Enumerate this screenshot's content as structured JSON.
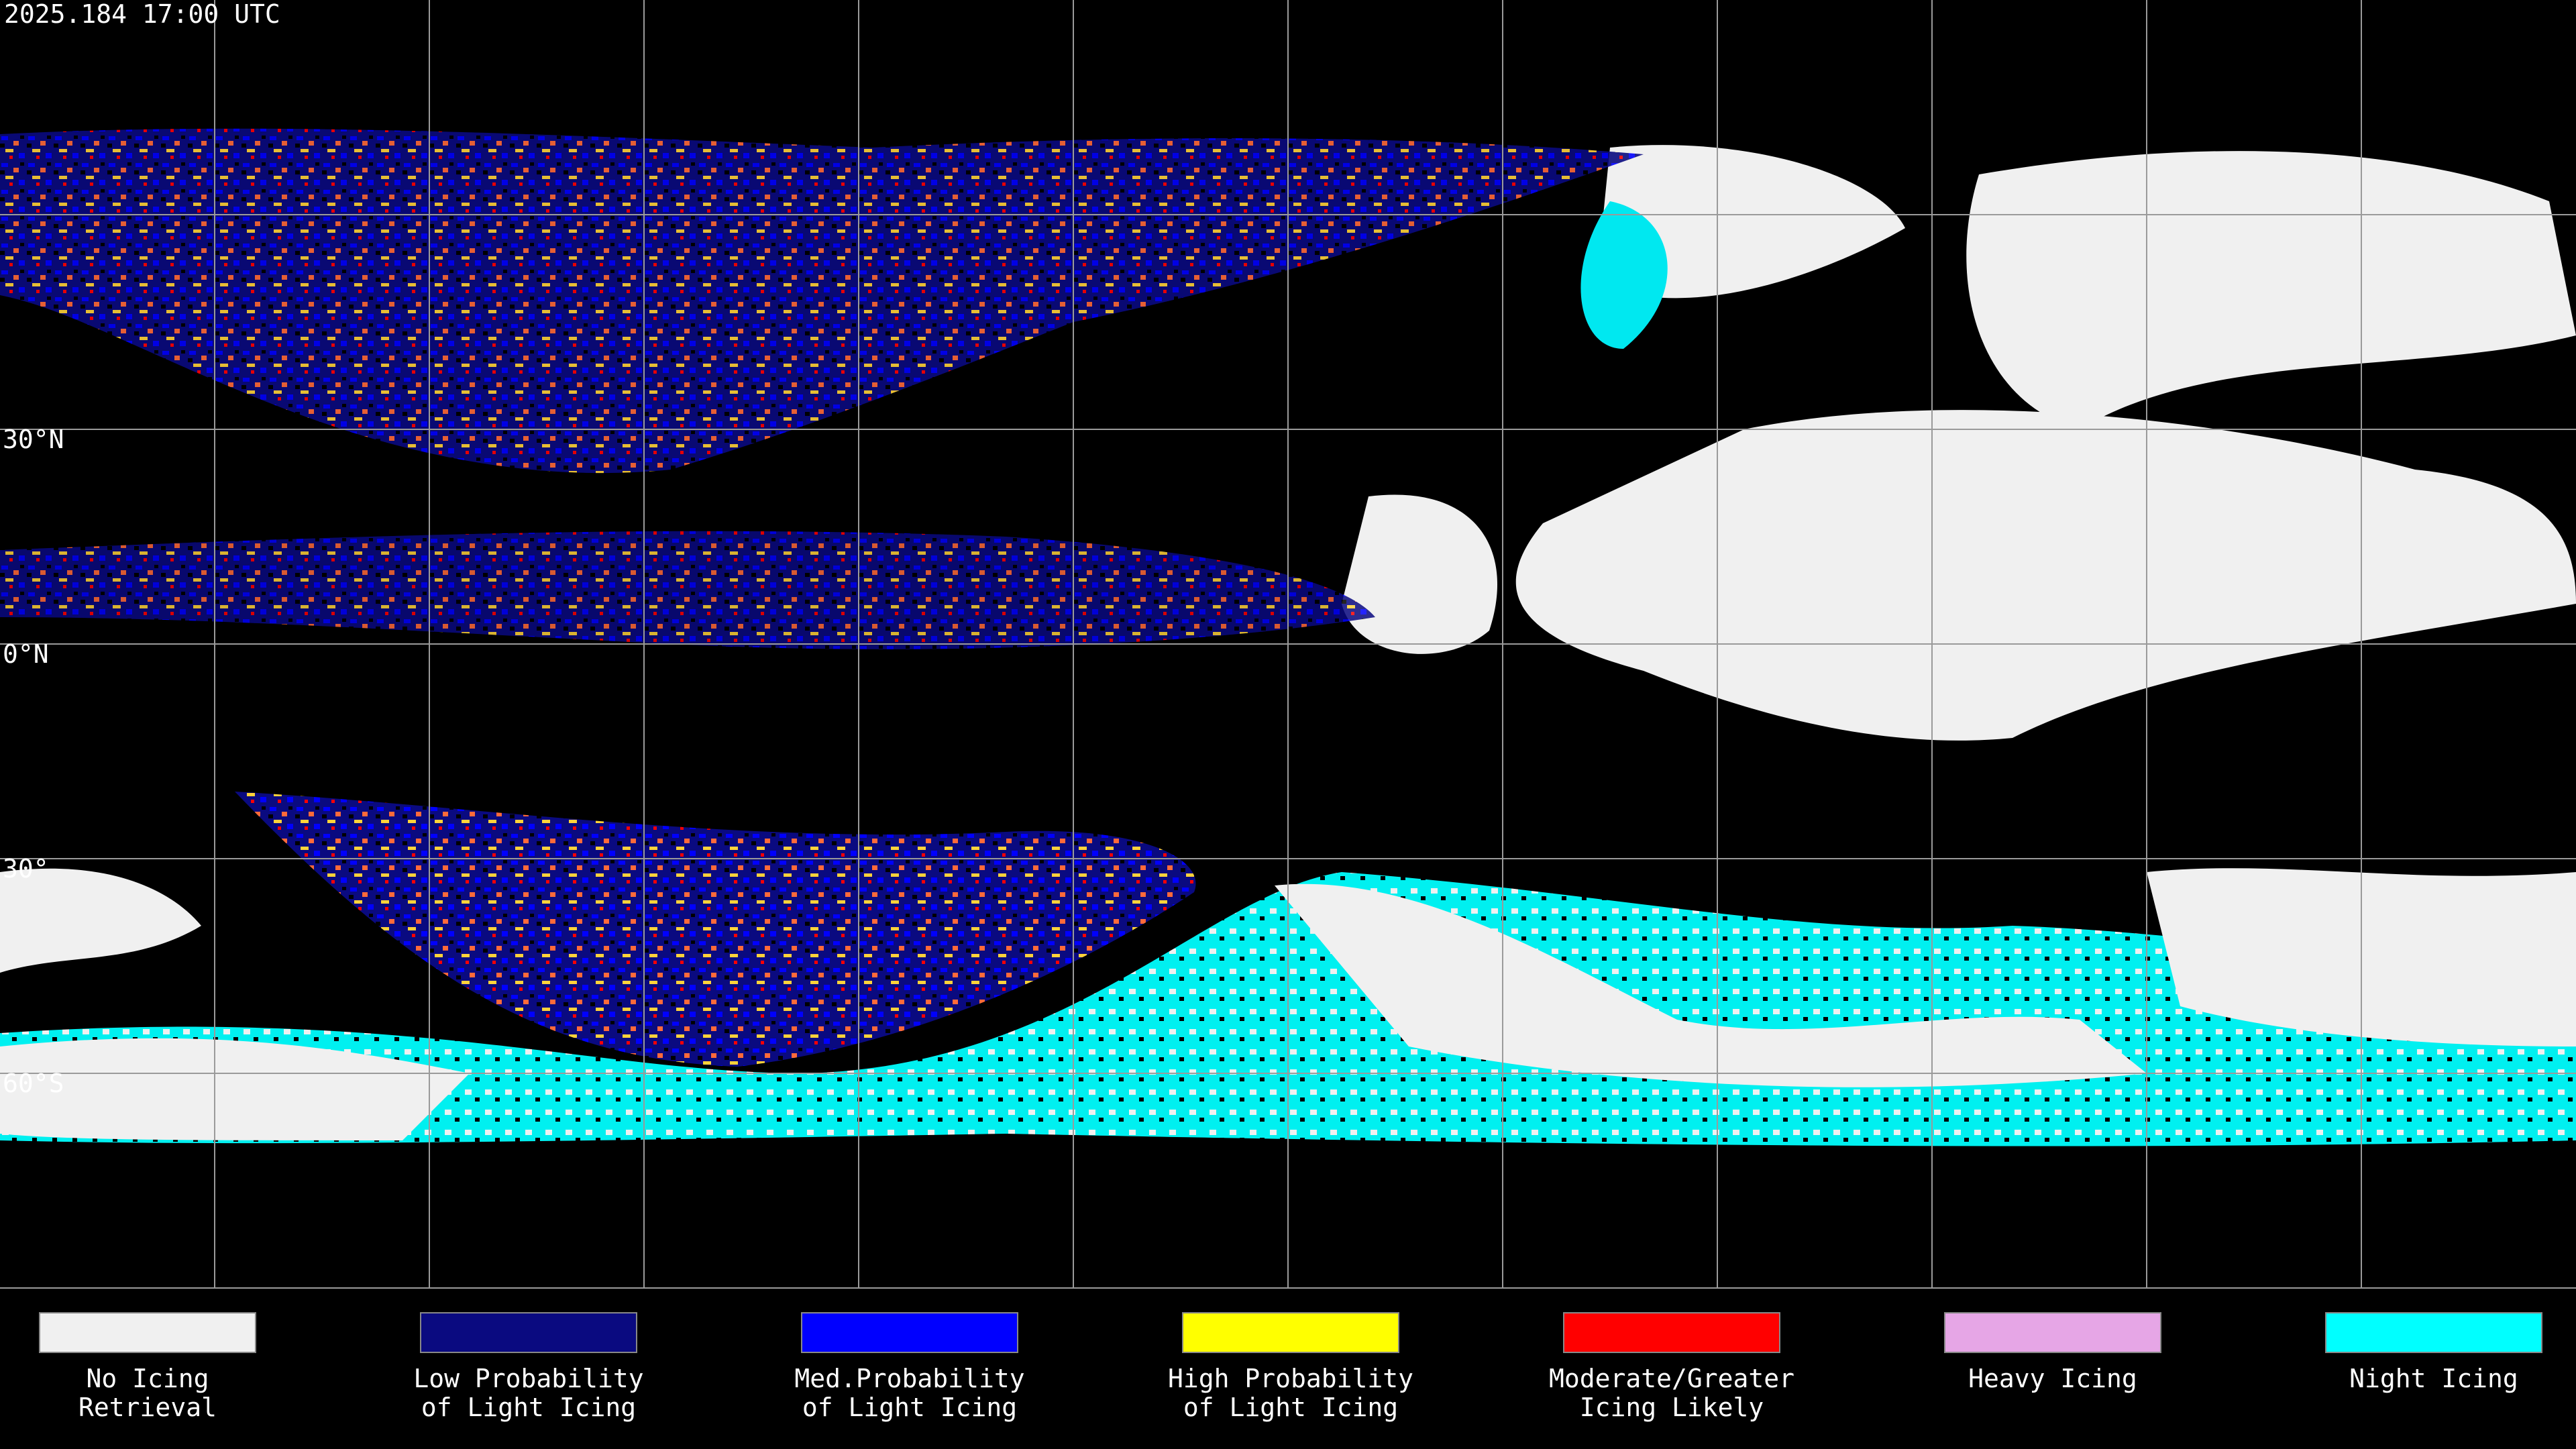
{
  "header": {
    "timestamp": "2025.184 17:00 UTC"
  },
  "latitude_labels": [
    "30°N",
    "0°N",
    "30°",
    "60°S"
  ],
  "legend": [
    {
      "lines": [
        "No Icing",
        "Retrieval"
      ],
      "color": "#f0f0f0"
    },
    {
      "lines": [
        "Low Probability",
        "of Light Icing"
      ],
      "color": "#0a0a80"
    },
    {
      "lines": [
        "Med.Probability",
        "of Light Icing"
      ],
      "color": "#0000ff"
    },
    {
      "lines": [
        "High Probability",
        "of Light Icing"
      ],
      "color": "#ffff00"
    },
    {
      "lines": [
        "Moderate/Greater",
        "Icing Likely"
      ],
      "color": "#ff0000"
    },
    {
      "lines": [
        "Heavy Icing"
      ],
      "color": "#e6a6e6"
    },
    {
      "lines": [
        "Night Icing"
      ],
      "color": "#00ffff"
    }
  ]
}
